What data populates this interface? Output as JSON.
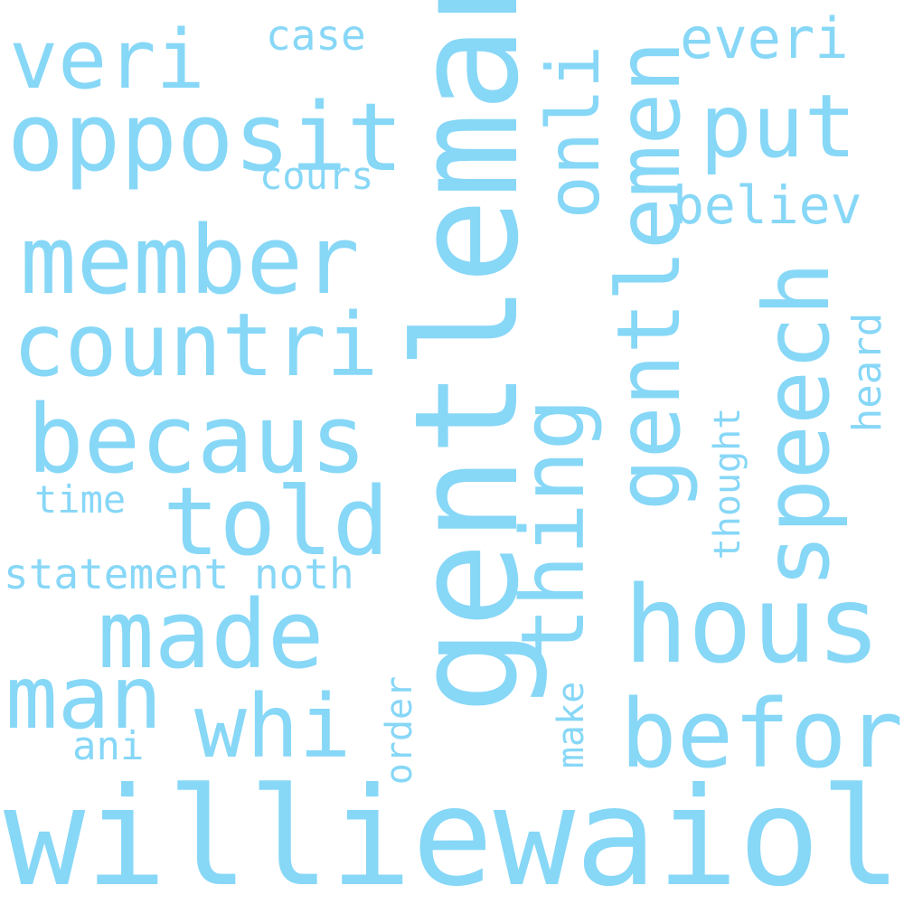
{
  "colors": {
    "word": "#87d7f7",
    "background": "#ffffff"
  },
  "words": {
    "gentleman": "gentleman",
    "williewaiola": "williewaiola",
    "veri": "veri",
    "opposit": "opposit",
    "member": "member",
    "countri": "countri",
    "becaus": "becaus",
    "told": "told",
    "made": "made",
    "man": "man",
    "whi": "whi",
    "hous": "hous",
    "befor": "befor",
    "put": "put",
    "everi": "everi",
    "believ": "believ",
    "speech": "speech",
    "gentlemen": "gentlemen",
    "onli": "onli",
    "thing": "thing",
    "case": "case",
    "cours": "cours",
    "time": "time",
    "statement": "statement",
    "noth": "noth",
    "thought": "thought",
    "heard": "heard",
    "order": "order",
    "make": "make",
    "ani": "ani"
  }
}
